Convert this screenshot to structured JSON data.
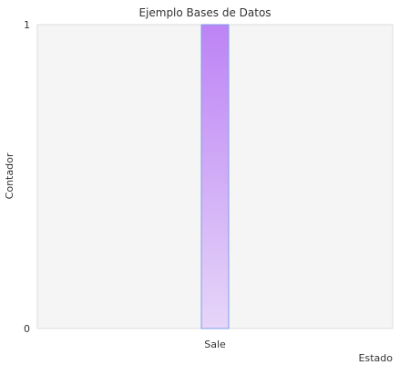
{
  "chart_data": {
    "type": "bar",
    "title": "Ejemplo Bases de Datos",
    "xlabel": "Estado",
    "ylabel": "Contador",
    "categories": [
      "Sale"
    ],
    "values": [
      1
    ],
    "ylim": [
      0,
      1
    ],
    "yticks": [
      "0",
      "1"
    ],
    "grid": false,
    "legend": "none",
    "colors": {
      "plot_background": "#f5f5f5",
      "plot_border": "#dddddd",
      "bar_top": "#bd83f5",
      "bar_bottom": "#e6d6f8",
      "bar_outline": "#7d9ee8"
    }
  }
}
